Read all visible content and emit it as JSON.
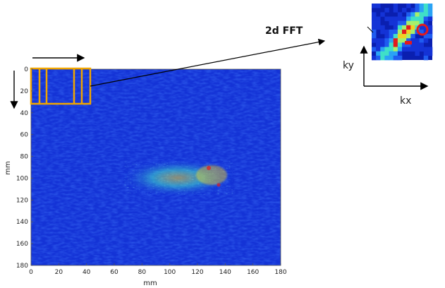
{
  "colors": {
    "field_base": "#1433d6",
    "field_dark": "#0a1fb0",
    "window_outline": "#f0a500",
    "arrow": "#000000",
    "hot": "#e31a1c",
    "warm": "#f2d024",
    "cyan": "#3fe0c8"
  },
  "diagram": {
    "fft_label": "2d FFT",
    "kx_label": "kx",
    "ky_label": "ky"
  },
  "chart_data": {
    "type": "heatmap",
    "title": "",
    "xlabel": "mm",
    "ylabel": "mm",
    "xlim": [
      0,
      180
    ],
    "ylim": [
      180,
      0
    ],
    "x_ticks": [
      "0",
      "20",
      "40",
      "60",
      "80",
      "100",
      "120",
      "140",
      "160",
      "180"
    ],
    "y_ticks": [
      "0",
      "20",
      "40",
      "60",
      "80",
      "100",
      "120",
      "140",
      "160",
      "180"
    ],
    "hotspot_region_mm": {
      "x": [
        68,
        148
      ],
      "y": [
        84,
        112
      ]
    },
    "scan_window_mm": {
      "x": [
        0,
        42
      ],
      "y": [
        0,
        32
      ]
    },
    "colormap": "jet"
  }
}
